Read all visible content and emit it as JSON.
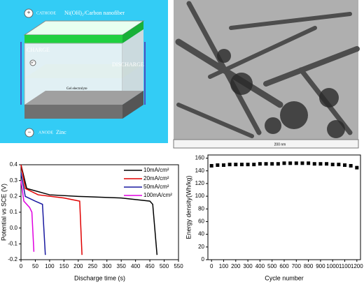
{
  "diagram": {
    "cathode": "CATHODE",
    "cathode_material": "Ni(OH)₂/Carbon nanofiber",
    "charge": "CHARGE",
    "discharge": "DISCHARGE",
    "electrolyte": "Gel electrolyte",
    "anode": "ANODE",
    "anode_material": "Zinc",
    "plus": "+",
    "minus": "−",
    "electron": "e⁻"
  },
  "micrograph": {
    "scale_bar": "200 nm"
  },
  "chart_data": [
    {
      "type": "line",
      "xlabel": "Discharge time (s)",
      "ylabel": "Potential vs SCE (V)",
      "xlim": [
        0,
        550
      ],
      "xticks": [
        0,
        50,
        100,
        150,
        200,
        250,
        300,
        350,
        400,
        450,
        500,
        550
      ],
      "ylim": [
        -0.2,
        0.4
      ],
      "yticks": [
        -0.2,
        -0.1,
        {
          "value": 0,
          "label": "0.0"
        },
        0.1,
        0.2,
        0.3,
        0.4
      ],
      "legend": "upper right",
      "series": [
        {
          "name": "10mA/cm²",
          "color": "#000000",
          "x": [
            0,
            20,
            100,
            200,
            350,
            450,
            460,
            475
          ],
          "values": [
            0.4,
            0.25,
            0.21,
            0.2,
            0.19,
            0.17,
            0.15,
            -0.17
          ]
        },
        {
          "name": "20mA/cm²",
          "color": "#e00000",
          "x": [
            0,
            15,
            60,
            150,
            205,
            213
          ],
          "values": [
            0.4,
            0.25,
            0.21,
            0.19,
            0.17,
            -0.17
          ]
        },
        {
          "name": "50mA/cm²",
          "color": "#1a1aa0",
          "x": [
            0,
            15,
            50,
            75,
            85
          ],
          "values": [
            0.35,
            0.2,
            0.17,
            0.15,
            -0.17
          ]
        },
        {
          "name": "100mA/cm²",
          "color": "#e000e0",
          "x": [
            0,
            10,
            30,
            38,
            45
          ],
          "values": [
            0.3,
            0.17,
            0.13,
            0.1,
            -0.15
          ]
        }
      ]
    },
    {
      "type": "scatter",
      "xlabel": "Cycle number",
      "ylabel": "Energy density(Wh/kg)",
      "xlim": [
        -30,
        1230
      ],
      "xticks": [
        0,
        100,
        200,
        300,
        400,
        500,
        600,
        700,
        800,
        900,
        1000,
        1100,
        1200
      ],
      "ylim": [
        0,
        165
      ],
      "yticks": [
        0,
        20,
        40,
        60,
        80,
        100,
        120,
        140,
        160
      ],
      "color": "#000000",
      "x": [
        0,
        50,
        100,
        150,
        200,
        250,
        300,
        350,
        400,
        450,
        500,
        550,
        600,
        650,
        700,
        750,
        800,
        850,
        900,
        950,
        1000,
        1050,
        1100,
        1150,
        1200
      ],
      "values": [
        148,
        149,
        149,
        150,
        150,
        150,
        150,
        150,
        151,
        151,
        151,
        151,
        152,
        152,
        152,
        152,
        152,
        151,
        151,
        151,
        150,
        150,
        149,
        148,
        145
      ]
    }
  ]
}
